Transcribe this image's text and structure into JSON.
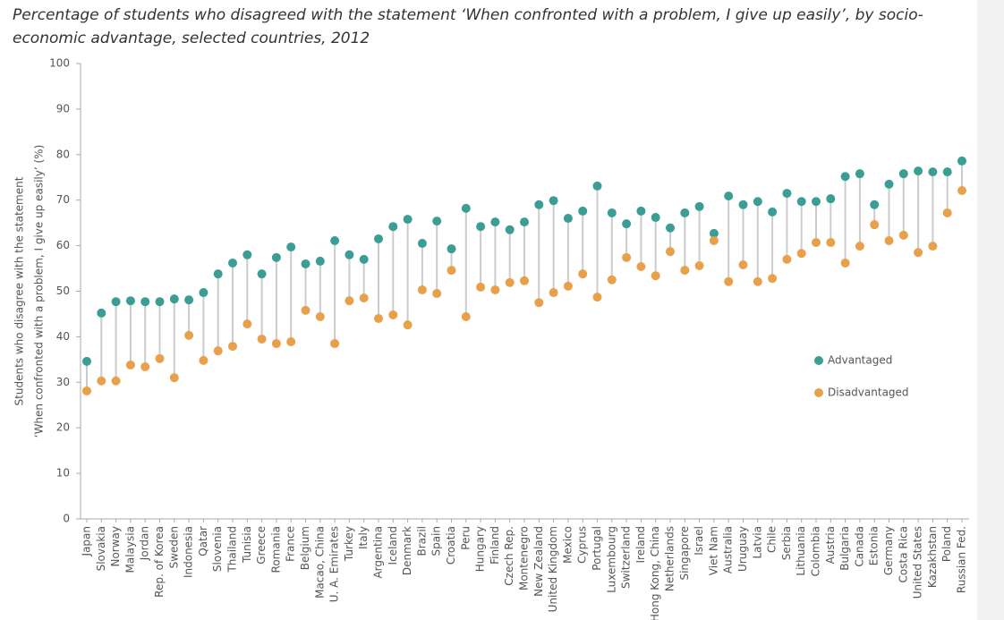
{
  "chart_data": {
    "type": "dumbbell",
    "title": "Percentage of students who disagreed with the statement ‘When confronted with a problem, I give up easily’, by socio-economic advantage, selected countries, 2012",
    "y_label": [
      "Students who disagree with the statement",
      "‘When confronted with a problem, I give up easily’ (%)"
    ],
    "categories": [
      "Japan",
      "Slovakia",
      "Norway",
      "Malaysia",
      "Jordan",
      "Rep. of Korea",
      "Sweden",
      "Indonesia",
      "Qatar",
      "Slovenia",
      "Thailand",
      "Tunisia",
      "Greece",
      "Romania",
      "France",
      "Belgium",
      "Macao, China",
      "U. A. Emirates",
      "Turkey",
      "Italy",
      "Argentina",
      "Iceland",
      "Denmark",
      "Brazil",
      "Spain",
      "Croatia",
      "Peru",
      "Hungary",
      "Finland",
      "Czech Rep.",
      "Montenegro",
      "New Zealand",
      "United Kingdom",
      "Mexico",
      "Cyprus",
      "Portugal",
      "Luxembourg",
      "Switzerland",
      "Ireland",
      "Hong Kong, China",
      "Netherlands",
      "Singapore",
      "Israel",
      "Viet Nam",
      "Australia",
      "Uruguay",
      "Latvia",
      "Chile",
      "Serbia",
      "Lithuania",
      "Colombia",
      "Austria",
      "Bulgaria",
      "Canada",
      "Estonia",
      "Germany",
      "Costa Rica",
      "United States",
      "Kazakhstan",
      "Poland",
      "Russian Fed."
    ],
    "series": [
      {
        "name": "Advantaged",
        "color": "#3a9e95",
        "values": [
          34.6,
          45.2,
          47.7,
          47.9,
          47.7,
          47.7,
          48.3,
          48.1,
          49.7,
          53.8,
          56.2,
          58.0,
          53.8,
          57.4,
          59.7,
          56.0,
          56.6,
          61.1,
          58.0,
          57.0,
          61.5,
          64.2,
          65.8,
          60.5,
          65.4,
          59.3,
          68.2,
          64.2,
          65.2,
          63.5,
          65.2,
          69.0,
          69.9,
          66.0,
          67.6,
          73.1,
          67.2,
          64.8,
          67.6,
          66.2,
          63.9,
          67.2,
          68.6,
          62.7,
          70.9,
          69.0,
          69.7,
          67.4,
          71.5,
          69.7,
          69.7,
          70.3,
          75.2,
          75.8,
          69.0,
          73.5,
          75.8,
          76.4,
          76.2,
          76.2,
          78.6
        ]
      },
      {
        "name": "Disadvantaged",
        "color": "#e9a04a",
        "values": [
          28.1,
          30.3,
          30.3,
          33.8,
          33.4,
          35.2,
          31.0,
          40.3,
          34.8,
          36.9,
          37.9,
          42.8,
          39.5,
          38.5,
          38.9,
          45.8,
          44.4,
          38.5,
          47.9,
          48.5,
          44.0,
          44.8,
          42.6,
          50.3,
          49.5,
          54.6,
          44.4,
          50.9,
          50.3,
          51.9,
          52.3,
          47.5,
          49.7,
          51.1,
          53.8,
          48.7,
          52.5,
          57.4,
          55.4,
          53.4,
          58.7,
          54.6,
          55.6,
          61.1,
          52.1,
          55.8,
          52.1,
          52.8,
          57.0,
          58.3,
          60.7,
          60.7,
          56.2,
          59.9,
          64.6,
          61.1,
          62.3,
          58.5,
          59.9,
          67.2,
          72.1
        ]
      }
    ],
    "connector_color": "#cccccc",
    "ylim": [
      0,
      100
    ],
    "yticks": [
      0,
      10,
      20,
      30,
      40,
      50,
      60,
      70,
      80,
      90,
      100
    ],
    "grid": false,
    "legend": "right"
  }
}
